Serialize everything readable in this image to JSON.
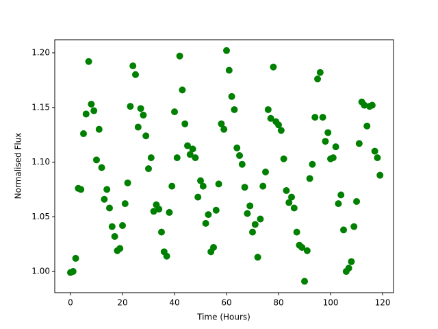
{
  "chart_data": {
    "type": "scatter",
    "x_label": "Time (Hours)",
    "y_label": "Normalised Flux",
    "color": "#008000",
    "grid": false,
    "xlim": [
      -6.05,
      124.2
    ],
    "ylim": [
      0.9806,
      1.2119
    ],
    "xticks": [
      0,
      20,
      40,
      60,
      80,
      100,
      120
    ],
    "yticks": [
      {
        "value": 1.0,
        "label": "1.00"
      },
      1.05,
      {
        "value": 1.1,
        "label": "1.10"
      },
      1.15,
      {
        "value": 1.2,
        "label": "1.20"
      }
    ],
    "x": [
      0,
      1,
      2,
      3,
      4,
      5,
      6,
      7,
      8,
      9,
      10,
      11,
      12,
      13,
      14,
      15,
      16,
      17,
      18,
      19,
      20,
      21,
      22,
      23,
      24,
      25,
      26,
      27,
      28,
      29,
      30,
      31,
      32,
      33,
      34,
      35,
      36,
      37,
      38,
      39,
      40,
      41,
      42,
      43,
      44,
      45,
      46,
      47,
      48,
      49,
      50,
      51,
      52,
      53,
      54,
      55,
      56,
      57,
      58,
      59,
      60,
      61,
      62,
      63,
      64,
      65,
      66,
      67,
      68,
      69,
      70,
      71,
      72,
      73,
      74,
      75,
      76,
      77,
      78,
      79,
      80,
      81,
      82,
      83,
      84,
      85,
      86,
      87,
      88,
      89,
      90,
      91,
      92,
      93,
      94,
      95,
      96,
      97,
      98,
      99,
      100,
      101,
      102,
      103,
      104,
      105,
      106,
      107,
      108,
      109,
      110,
      111,
      112,
      113,
      114,
      115,
      116,
      117,
      118,
      119
    ],
    "y": [
      0.999,
      1.0,
      1.012,
      1.076,
      1.075,
      1.126,
      1.144,
      1.192,
      1.153,
      1.147,
      1.102,
      1.13,
      1.095,
      1.066,
      1.075,
      1.058,
      1.041,
      1.032,
      1.019,
      1.021,
      1.042,
      1.062,
      1.081,
      1.151,
      1.188,
      1.18,
      1.132,
      1.149,
      1.143,
      1.124,
      1.094,
      1.104,
      1.055,
      1.061,
      1.057,
      1.036,
      1.018,
      1.014,
      1.054,
      1.078,
      1.146,
      1.104,
      1.197,
      1.166,
      1.135,
      1.115,
      1.107,
      1.112,
      1.104,
      1.068,
      1.083,
      1.078,
      1.044,
      1.052,
      1.018,
      1.022,
      1.056,
      1.08,
      1.135,
      1.13,
      1.202,
      1.184,
      1.16,
      1.148,
      1.113,
      1.106,
      1.098,
      1.077,
      1.053,
      1.06,
      1.036,
      1.043,
      1.013,
      1.048,
      1.078,
      1.091,
      1.148,
      1.14,
      1.187,
      1.137,
      1.134,
      1.129,
      1.103,
      1.074,
      1.063,
      1.068,
      1.058,
      1.036,
      1.024,
      1.022,
      0.991,
      1.019,
      1.085,
      1.098,
      1.141,
      1.176,
      1.182,
      1.141,
      1.119,
      1.127,
      1.103,
      1.104,
      1.114,
      1.062,
      1.07,
      1.038,
      1.0,
      1.003,
      1.009,
      1.041,
      1.064,
      1.117,
      1.155,
      1.152,
      1.133,
      1.151,
      1.152,
      1.11,
      1.104,
      1.088
    ]
  }
}
